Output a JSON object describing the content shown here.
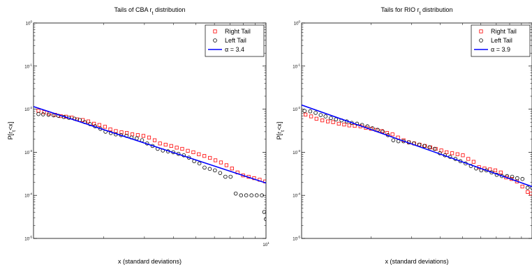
{
  "chart_data": [
    {
      "type": "scatter",
      "title": {
        "pre": "Tails of CBA r",
        "sub": "t",
        "post": " distribution"
      },
      "xlabel": "x (standard deviations)",
      "ylabel": {
        "pre": "P[r",
        "sub": "t",
        "post": "<x]"
      },
      "xscale": "log",
      "yscale": "log",
      "xlim": [
        1,
        10
      ],
      "ylim": [
        1e-05,
        1
      ],
      "ytick_labels": [
        {
          "base": "10",
          "exp": "-5"
        },
        {
          "base": "10",
          "exp": "-4"
        },
        {
          "base": "10",
          "exp": "-3"
        },
        {
          "base": "10",
          "exp": "-2"
        },
        {
          "base": "10",
          "exp": "-1"
        },
        {
          "base": "10",
          "exp": "0"
        }
      ],
      "xtick_labels": [
        {
          "base": "10",
          "exp": "1"
        }
      ],
      "legend_position": "top-right",
      "series": [
        {
          "name": "Right Tail",
          "marker": "square",
          "color": "#ff0000",
          "x": [
            1.05,
            1.11,
            1.17,
            1.24,
            1.31,
            1.38,
            1.46,
            1.54,
            1.63,
            1.72,
            1.82,
            1.92,
            2.03,
            2.14,
            2.26,
            2.39,
            2.52,
            2.66,
            2.81,
            2.97,
            3.14,
            3.32,
            3.5,
            3.7,
            3.91,
            4.13,
            4.36,
            4.61,
            4.87,
            5.14,
            5.43,
            5.74,
            6.06,
            6.4,
            6.76,
            7.14,
            7.54,
            7.97,
            8.42,
            8.89,
            9.39,
            9.92
          ],
          "y": [
            0.0092,
            0.0085,
            0.0079,
            0.0074,
            0.0069,
            0.0067,
            0.0064,
            0.0058,
            0.0056,
            0.0052,
            0.0046,
            0.0043,
            0.0039,
            0.0034,
            0.0031,
            0.0029,
            0.0028,
            0.0026,
            0.0025,
            0.0024,
            0.0022,
            0.0019,
            0.0016,
            0.0015,
            0.0014,
            0.00128,
            0.0012,
            0.00108,
            0.001,
            0.0009,
            0.00082,
            0.00074,
            0.00065,
            0.00058,
            0.0005,
            0.00042,
            0.00034,
            0.00029,
            0.00027,
            0.00025,
            0.00023,
            0.00021
          ]
        },
        {
          "name": "Left Tail",
          "marker": "circle",
          "color": "#000000",
          "x": [
            1.05,
            1.1,
            1.16,
            1.22,
            1.28,
            1.35,
            1.42,
            1.5,
            1.58,
            1.66,
            1.75,
            1.84,
            1.94,
            2.04,
            2.15,
            2.26,
            2.38,
            2.51,
            2.64,
            2.78,
            2.93,
            3.08,
            3.25,
            3.42,
            3.6,
            3.79,
            3.99,
            4.2,
            4.43,
            4.66,
            4.91,
            5.17,
            5.44,
            5.73,
            6.03,
            6.35,
            6.69,
            7.04,
            7.41,
            7.81,
            8.22,
            8.66,
            9.12,
            9.6,
            9.83,
            10
          ],
          "y": [
            0.0077,
            0.0076,
            0.0074,
            0.0072,
            0.007,
            0.0066,
            0.0063,
            0.006,
            0.0056,
            0.005,
            0.0045,
            0.004,
            0.0035,
            0.003,
            0.0028,
            0.0026,
            0.0025,
            0.0024,
            0.0022,
            0.0021,
            0.0019,
            0.0016,
            0.0014,
            0.0012,
            0.0011,
            0.00105,
            0.001,
            0.00092,
            0.00085,
            0.00075,
            0.00062,
            0.00055,
            0.00044,
            0.00041,
            0.00038,
            0.00033,
            0.00027,
            0.00027,
            0.00011,
            0.0001,
            0.0001,
            0.0001,
            0.0001,
            0.0001,
            4.1e-05,
            2.8e-05
          ]
        }
      ],
      "fit_line": {
        "label": "α = 3.4",
        "alpha": 3.4,
        "color": "#0000ff",
        "x": [
          1,
          10
        ],
        "y": [
          0.0115,
          0.000193
        ]
      }
    },
    {
      "type": "scatter",
      "title": {
        "pre": "Tails for RIO r",
        "sub": "t",
        "post": " distribution"
      },
      "xlabel": "x (standard deviations)",
      "ylabel": {
        "pre": "P[r",
        "sub": "t",
        "post": "<x]"
      },
      "xscale": "log",
      "yscale": "log",
      "xlim": [
        1,
        10
      ],
      "ylim": [
        1e-05,
        1
      ],
      "ytick_labels": [
        {
          "base": "10",
          "exp": "-5"
        },
        {
          "base": "10",
          "exp": "-4"
        },
        {
          "base": "10",
          "exp": "-3"
        },
        {
          "base": "10",
          "exp": "-2"
        },
        {
          "base": "10",
          "exp": "-1"
        },
        {
          "base": "10",
          "exp": "0"
        }
      ],
      "legend_position": "top-right",
      "series": [
        {
          "name": "Right Tail",
          "marker": "square",
          "color": "#ff0000",
          "x": [
            1.04,
            1.1,
            1.16,
            1.23,
            1.3,
            1.37,
            1.45,
            1.53,
            1.61,
            1.7,
            1.8,
            1.9,
            2.0,
            2.11,
            2.23,
            2.35,
            2.48,
            2.62,
            2.77,
            2.92,
            3.08,
            3.25,
            3.43,
            3.62,
            3.82,
            4.04,
            4.26,
            4.5,
            4.75,
            5.01,
            5.29,
            5.58,
            5.89,
            6.22,
            6.57,
            6.93,
            7.32,
            7.72,
            8.15,
            8.6,
            9.08,
            9.58,
            9.9
          ],
          "y": [
            0.0075,
            0.0068,
            0.006,
            0.0055,
            0.0052,
            0.005,
            0.0046,
            0.0044,
            0.0042,
            0.0041,
            0.004,
            0.0037,
            0.0035,
            0.0033,
            0.0031,
            0.0028,
            0.0026,
            0.0022,
            0.0019,
            0.0017,
            0.0016,
            0.0015,
            0.0014,
            0.0013,
            0.0012,
            0.0011,
            0.001,
            0.00095,
            0.0009,
            0.00085,
            0.0007,
            0.0006,
            0.00045,
            0.00042,
            0.0004,
            0.00038,
            0.00034,
            0.00026,
            0.00024,
            0.00021,
            0.00016,
            0.00012,
            0.00011
          ]
        },
        {
          "name": "Left Tail",
          "marker": "circle",
          "color": "#000000",
          "x": [
            1.03,
            1.09,
            1.15,
            1.21,
            1.27,
            1.34,
            1.41,
            1.49,
            1.57,
            1.65,
            1.74,
            1.83,
            1.93,
            2.03,
            2.14,
            2.25,
            2.37,
            2.5,
            2.63,
            2.77,
            2.92,
            3.07,
            3.24,
            3.41,
            3.59,
            3.78,
            3.98,
            4.19,
            4.41,
            4.65,
            4.89,
            5.15,
            5.43,
            5.72,
            6.02,
            6.34,
            6.68,
            7.03,
            7.4,
            7.79,
            8.2,
            8.63,
            9.09,
            9.57,
            10
          ],
          "y": [
            0.0091,
            0.0089,
            0.0082,
            0.0073,
            0.0068,
            0.0062,
            0.0058,
            0.0055,
            0.0052,
            0.0048,
            0.0046,
            0.0043,
            0.004,
            0.0036,
            0.0033,
            0.003,
            0.0025,
            0.0019,
            0.0018,
            0.0018,
            0.0017,
            0.0016,
            0.0015,
            0.0014,
            0.0013,
            0.0012,
            0.00095,
            0.00085,
            0.00078,
            0.0007,
            0.00062,
            0.00055,
            0.00048,
            0.00042,
            0.00038,
            0.00038,
            0.00034,
            0.0003,
            0.00028,
            0.00028,
            0.00027,
            0.00025,
            0.00024,
            0.00015,
            0.00015
          ]
        }
      ],
      "fit_line": {
        "label": "α = 3.9",
        "alpha": 3.9,
        "color": "#0000ff",
        "x": [
          1,
          10
        ],
        "y": [
          0.0125,
          0.00016
        ]
      }
    }
  ]
}
